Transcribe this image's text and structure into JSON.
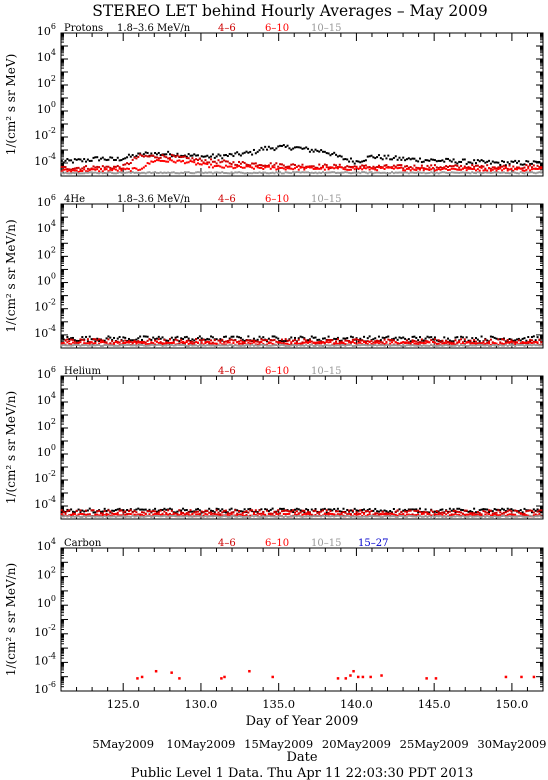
{
  "title": "STEREO LET behind Hourly Averages – May 2009",
  "xlabel": "Day of Year 2009",
  "date_label": "Date",
  "footer": "Public Level 1 Data. Thu Apr 11 22:03:30 PDT 2013",
  "x_range": [
    121,
    152
  ],
  "x_ticks": [
    125,
    130,
    135,
    140,
    145,
    150
  ],
  "x_tick_labels": [
    "125.0",
    "130.0",
    "135.0",
    "140.0",
    "145.0",
    "150.0"
  ],
  "date_ticks": [
    {
      "label": "5May2009",
      "doy": 125
    },
    {
      "label": "10May2009",
      "doy": 130
    },
    {
      "label": "15May2009",
      "doy": 135
    },
    {
      "label": "20May2009",
      "doy": 140
    },
    {
      "label": "25May2009",
      "doy": 145
    },
    {
      "label": "30May2009",
      "doy": 150
    }
  ],
  "colors": {
    "black": "#000000",
    "red4": "#cc0000",
    "red6": "#ff0000",
    "gray": "#999999",
    "blue": "#0000cc"
  },
  "chart_data": [
    {
      "type": "scatter",
      "name": "Protons",
      "channel": "1.8–3.6 MeV/n",
      "ylabel": "1/(cm² s sr MeV)",
      "yscale": "log",
      "ylim_exp": [
        -5,
        6
      ],
      "ytick_exps": [
        6,
        4,
        2,
        0,
        -2,
        -4
      ],
      "legend": [
        {
          "label": "1.8–3.6 MeV/n",
          "color": "#000000"
        },
        {
          "label": "4–6",
          "color": "#cc0000"
        },
        {
          "label": "6–10",
          "color": "#ff0000"
        },
        {
          "label": "10–15",
          "color": "#999999"
        }
      ],
      "series": [
        {
          "name": "1.8–3.6 MeV/n",
          "color": "#000000",
          "log_profile": [
            [
              121,
              -3.9
            ],
            [
              122.5,
              -3.8
            ],
            [
              123.5,
              -3.65
            ],
            [
              124.5,
              -3.75
            ],
            [
              125.5,
              -3.5
            ],
            [
              126.5,
              -3.3
            ],
            [
              128,
              -3.3
            ],
            [
              129,
              -3.4
            ],
            [
              130,
              -3.5
            ],
            [
              131,
              -3.5
            ],
            [
              132,
              -3.4
            ],
            [
              133.3,
              -3.2
            ],
            [
              134,
              -2.9
            ],
            [
              135,
              -2.8
            ],
            [
              136,
              -2.8
            ],
            [
              137,
              -3.0
            ],
            [
              138,
              -3.1
            ],
            [
              139,
              -3.6
            ],
            [
              140,
              -3.9
            ],
            [
              141,
              -3.5
            ],
            [
              142,
              -3.6
            ],
            [
              143,
              -3.7
            ],
            [
              145,
              -3.8
            ],
            [
              147,
              -3.9
            ],
            [
              149,
              -4.0
            ],
            [
              152,
              -4.0
            ]
          ],
          "log_spread": 0.18
        },
        {
          "name": "4–6",
          "color": "#cc0000",
          "log_profile": [
            [
              121,
              -4.4
            ],
            [
              125,
              -4.3
            ],
            [
              126,
              -3.5
            ],
            [
              128,
              -3.5
            ],
            [
              130,
              -3.8
            ],
            [
              132,
              -4.0
            ],
            [
              134,
              -4.1
            ],
            [
              136,
              -4.2
            ],
            [
              140,
              -4.3
            ],
            [
              145,
              -4.3
            ],
            [
              152,
              -4.3
            ]
          ],
          "log_spread": 0.15
        },
        {
          "name": "6–10",
          "color": "#ff0000",
          "log_profile": [
            [
              121,
              -4.6
            ],
            [
              126,
              -4.5
            ],
            [
              127,
              -3.8
            ],
            [
              129,
              -3.9
            ],
            [
              131,
              -4.3
            ],
            [
              135,
              -4.4
            ],
            [
              152,
              -4.5
            ]
          ],
          "log_spread": 0.12
        },
        {
          "name": "10–15",
          "color": "#999999",
          "log_profile": [
            [
              121,
              -4.75
            ],
            [
              152,
              -4.75
            ]
          ],
          "log_spread": 0.05
        }
      ]
    },
    {
      "type": "scatter",
      "name": "4He",
      "channel": "1.8–3.6 MeV/n",
      "ylabel": "1/(cm² s sr MeV/n)",
      "yscale": "log",
      "ylim_exp": [
        -5,
        6
      ],
      "ytick_exps": [
        6,
        4,
        2,
        0,
        -2,
        -4
      ],
      "legend": [
        {
          "label": "1.8–3.6 MeV/n",
          "color": "#000000"
        },
        {
          "label": "4–6",
          "color": "#cc0000"
        },
        {
          "label": "6–10",
          "color": "#ff0000"
        },
        {
          "label": "10–15",
          "color": "#999999"
        }
      ],
      "series": [
        {
          "name": "1.8–3.6 MeV/n",
          "color": "#000000",
          "log_profile": [
            [
              121,
              -4.3
            ],
            [
              152,
              -4.3
            ]
          ],
          "log_spread": 0.2
        },
        {
          "name": "4–6",
          "color": "#cc0000",
          "log_profile": [
            [
              121,
              -4.5
            ],
            [
              152,
              -4.5
            ]
          ],
          "log_spread": 0.18
        },
        {
          "name": "6–10",
          "color": "#ff0000",
          "log_profile": [
            [
              121,
              -4.65
            ],
            [
              152,
              -4.65
            ]
          ],
          "log_spread": 0.12
        },
        {
          "name": "10–15",
          "color": "#999999",
          "log_profile": [
            [
              121,
              -4.8
            ],
            [
              152,
              -4.8
            ]
          ],
          "log_spread": 0.05
        }
      ]
    },
    {
      "type": "scatter",
      "name": "Helium",
      "channel": "",
      "ylabel": "1/(cm² s sr MeV/n)",
      "yscale": "log",
      "ylim_exp": [
        -5,
        6
      ],
      "ytick_exps": [
        6,
        4,
        2,
        0,
        -2,
        -4
      ],
      "legend": [
        {
          "label": "4–6",
          "color": "#cc0000"
        },
        {
          "label": "6–10",
          "color": "#ff0000"
        },
        {
          "label": "10–15",
          "color": "#999999"
        }
      ],
      "series": [
        {
          "name": "black",
          "color": "#000000",
          "log_profile": [
            [
              121,
              -4.35
            ],
            [
              152,
              -4.35
            ]
          ],
          "log_spread": 0.15
        },
        {
          "name": "4–6",
          "color": "#cc0000",
          "log_profile": [
            [
              121,
              -4.5
            ],
            [
              152,
              -4.5
            ]
          ],
          "log_spread": 0.18
        },
        {
          "name": "6–10",
          "color": "#ff0000",
          "log_profile": [
            [
              121,
              -4.7
            ],
            [
              152,
              -4.7
            ]
          ],
          "log_spread": 0.1
        },
        {
          "name": "10–15",
          "color": "#999999",
          "log_profile": [
            [
              121,
              -4.8
            ],
            [
              152,
              -4.8
            ]
          ],
          "log_spread": 0.05
        }
      ]
    },
    {
      "type": "scatter",
      "name": "Carbon",
      "channel": "",
      "ylabel": "1/(cm² s sr MeV/n)",
      "yscale": "log",
      "ylim_exp": [
        -6,
        4
      ],
      "ytick_exps": [
        4,
        2,
        0,
        -2,
        -4,
        -6
      ],
      "legend": [
        {
          "label": "4–6",
          "color": "#cc0000"
        },
        {
          "label": "6–10",
          "color": "#ff0000"
        },
        {
          "label": "10–15",
          "color": "#999999"
        },
        {
          "label": "15–27",
          "color": "#0000cc"
        }
      ],
      "points": [
        {
          "x": 125.9,
          "exp": -5.1
        },
        {
          "x": 126.2,
          "exp": -5.0
        },
        {
          "x": 127.1,
          "exp": -4.6
        },
        {
          "x": 128.1,
          "exp": -4.7
        },
        {
          "x": 128.6,
          "exp": -5.1
        },
        {
          "x": 131.3,
          "exp": -5.1
        },
        {
          "x": 131.5,
          "exp": -5.0
        },
        {
          "x": 133.1,
          "exp": -4.6
        },
        {
          "x": 134.6,
          "exp": -5.0
        },
        {
          "x": 138.8,
          "exp": -5.1
        },
        {
          "x": 139.3,
          "exp": -5.1
        },
        {
          "x": 139.6,
          "exp": -4.9
        },
        {
          "x": 139.8,
          "exp": -4.6
        },
        {
          "x": 140.1,
          "exp": -5.0
        },
        {
          "x": 140.4,
          "exp": -5.0
        },
        {
          "x": 140.9,
          "exp": -5.0
        },
        {
          "x": 141.6,
          "exp": -4.9
        },
        {
          "x": 144.5,
          "exp": -5.1
        },
        {
          "x": 145.1,
          "exp": -5.1
        },
        {
          "x": 149.6,
          "exp": -5.0
        },
        {
          "x": 150.6,
          "exp": -5.0
        },
        {
          "x": 151.4,
          "exp": -5.0
        }
      ],
      "point_color": "#ff0000"
    }
  ]
}
